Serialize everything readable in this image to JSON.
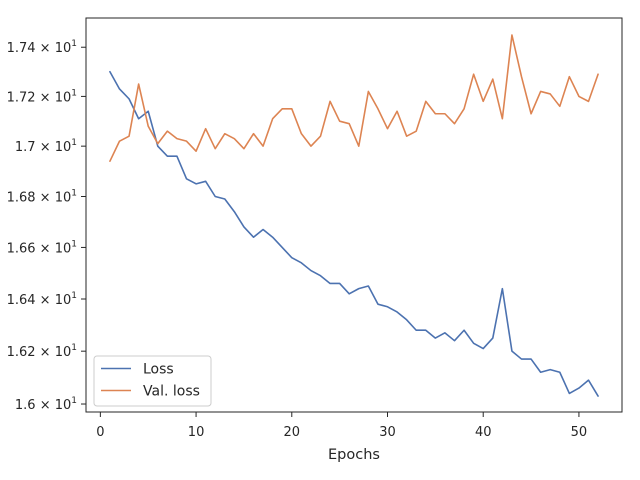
{
  "chart_data": {
    "type": "line",
    "title": "",
    "xlabel": "Epochs",
    "ylabel": "",
    "xlim": [
      -1.5,
      54.5
    ],
    "ylim": [
      15.97,
      17.52
    ],
    "yscale": "log",
    "grid": false,
    "legend_position": "lower-left",
    "x_ticks": [
      0,
      10,
      20,
      30,
      40,
      50
    ],
    "x_tick_labels": [
      "0",
      "10",
      "20",
      "30",
      "40",
      "50"
    ],
    "y_ticks": [
      16.0,
      16.2,
      16.4,
      16.6,
      16.8,
      17.0,
      17.2,
      17.4
    ],
    "y_tick_labels": [
      {
        "mantissa": "1.6",
        "exp": "1"
      },
      {
        "mantissa": "1.62",
        "exp": "1"
      },
      {
        "mantissa": "1.64",
        "exp": "1"
      },
      {
        "mantissa": "1.66",
        "exp": "1"
      },
      {
        "mantissa": "1.68",
        "exp": "1"
      },
      {
        "mantissa": "1.7",
        "exp": "1"
      },
      {
        "mantissa": "1.72",
        "exp": "1"
      },
      {
        "mantissa": "1.74",
        "exp": "1"
      }
    ],
    "x": [
      1,
      2,
      3,
      4,
      5,
      6,
      7,
      8,
      9,
      10,
      11,
      12,
      13,
      14,
      15,
      16,
      17,
      18,
      19,
      20,
      21,
      22,
      23,
      24,
      25,
      26,
      27,
      28,
      29,
      30,
      31,
      32,
      33,
      34,
      35,
      36,
      37,
      38,
      39,
      40,
      41,
      42,
      43,
      44,
      45,
      46,
      47,
      48,
      49,
      50,
      51,
      52
    ],
    "series": [
      {
        "name": "Loss",
        "color": "#4c72b0",
        "values": [
          17.3,
          17.23,
          17.19,
          17.11,
          17.14,
          17.0,
          16.96,
          16.96,
          16.87,
          16.85,
          16.86,
          16.8,
          16.79,
          16.74,
          16.68,
          16.64,
          16.67,
          16.64,
          16.6,
          16.56,
          16.54,
          16.51,
          16.49,
          16.46,
          16.46,
          16.42,
          16.44,
          16.45,
          16.38,
          16.37,
          16.35,
          16.32,
          16.28,
          16.28,
          16.25,
          16.27,
          16.24,
          16.28,
          16.23,
          16.21,
          16.25,
          16.44,
          16.2,
          16.17,
          16.17,
          16.12,
          16.13,
          16.12,
          16.04,
          16.06,
          16.09,
          16.03
        ]
      },
      {
        "name": "Val. loss",
        "color": "#dd8452",
        "values": [
          16.94,
          17.02,
          17.04,
          17.25,
          17.08,
          17.01,
          17.06,
          17.03,
          17.02,
          16.98,
          17.07,
          16.99,
          17.05,
          17.03,
          16.99,
          17.05,
          17.0,
          17.11,
          17.15,
          17.15,
          17.05,
          17.0,
          17.04,
          17.18,
          17.1,
          17.09,
          17.0,
          17.22,
          17.15,
          17.07,
          17.14,
          17.04,
          17.06,
          17.18,
          17.13,
          17.13,
          17.09,
          17.15,
          17.29,
          17.18,
          17.27,
          17.11,
          17.45,
          17.28,
          17.13,
          17.22,
          17.21,
          17.16,
          17.28,
          17.2,
          17.18,
          17.29
        ]
      }
    ]
  }
}
